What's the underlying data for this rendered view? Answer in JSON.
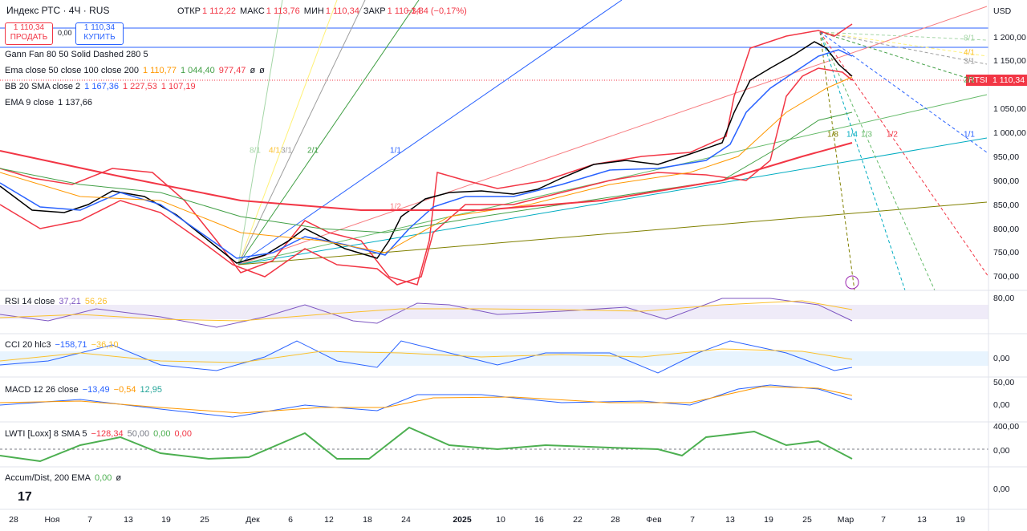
{
  "header": {
    "symbol": "Индекс РТС · 4Ч · RUS",
    "ohlc": [
      {
        "label": "ОТКР",
        "value": "1 112,22"
      },
      {
        "label": "МАКС",
        "value": "1 113,76"
      },
      {
        "label": "МИН",
        "value": "1 110,34"
      },
      {
        "label": "ЗАКР",
        "value": "1 110,34"
      }
    ],
    "change": "−1,84 (−0,17%)"
  },
  "trade": {
    "sell_price": "1 110,34",
    "sell": "ПРОДАТЬ",
    "spread": "0,00",
    "buy_price": "1 110,34",
    "buy": "КУПИТЬ"
  },
  "indicators": [
    {
      "name": "Gann Fan 80 50 Solid Dashed 280 5",
      "values": []
    },
    {
      "name": "Ema close 50 close 100 close 200",
      "values": [
        "1 110,77",
        "1 044,40",
        "977,47",
        "ø",
        "ø"
      ]
    },
    {
      "name": "BB 20 SMA close 2",
      "values": [
        "1 167,36",
        "1 227,53",
        "1 107,19"
      ]
    },
    {
      "name": "EMA 9 close",
      "values": [
        "1 137,66"
      ]
    }
  ],
  "gann_labels": [
    "8/1",
    "4/1",
    "3/1",
    "2/1",
    "1/1",
    "1/2"
  ],
  "gann_labels_right": [
    "8/1",
    "4/1",
    "3/1",
    "2/1",
    "1/1",
    "1/8",
    "1/4",
    "1/3",
    "1/2"
  ],
  "price_axis": {
    "currency": "USD",
    "labels": [
      "1 200,00",
      "1 150,00",
      "1 050,00",
      "1 000,00",
      "950,00",
      "900,00",
      "850,00",
      "800,00",
      "750,00",
      "700,00"
    ],
    "symbol": "RTSI",
    "last": "1 110,34"
  },
  "panes": [
    {
      "name": "RSI 14 close",
      "values": [
        "37,21",
        "56,26"
      ],
      "axis": [
        "80,00"
      ]
    },
    {
      "name": "CCI 20 hlc3",
      "values": [
        "−158,71",
        "−36,10"
      ],
      "axis": [
        "0,00"
      ]
    },
    {
      "name": "MACD 12 26 close",
      "values": [
        "−13,49",
        "−0,54",
        "12,95"
      ],
      "axis": [
        "50,00",
        "0,00"
      ]
    },
    {
      "name": "LWTI [Loxx] 8 SMA 5",
      "values": [
        "−128,34",
        "50,00",
        "0,00",
        "0,00"
      ],
      "axis": [
        "400,00",
        "0,00"
      ]
    },
    {
      "name": "Accum/Dist, 200 EMA",
      "values": [
        "0,00",
        "ø"
      ],
      "axis": [
        "0,00"
      ]
    }
  ],
  "time_axis": [
    "28",
    "Ноя",
    "7",
    "13",
    "19",
    "25",
    "Дек",
    "6",
    "12",
    "18",
    "24",
    "2025",
    "10",
    "16",
    "22",
    "28",
    "Фев",
    "7",
    "13",
    "19",
    "25",
    "Мар",
    "7",
    "13",
    "19"
  ]
}
